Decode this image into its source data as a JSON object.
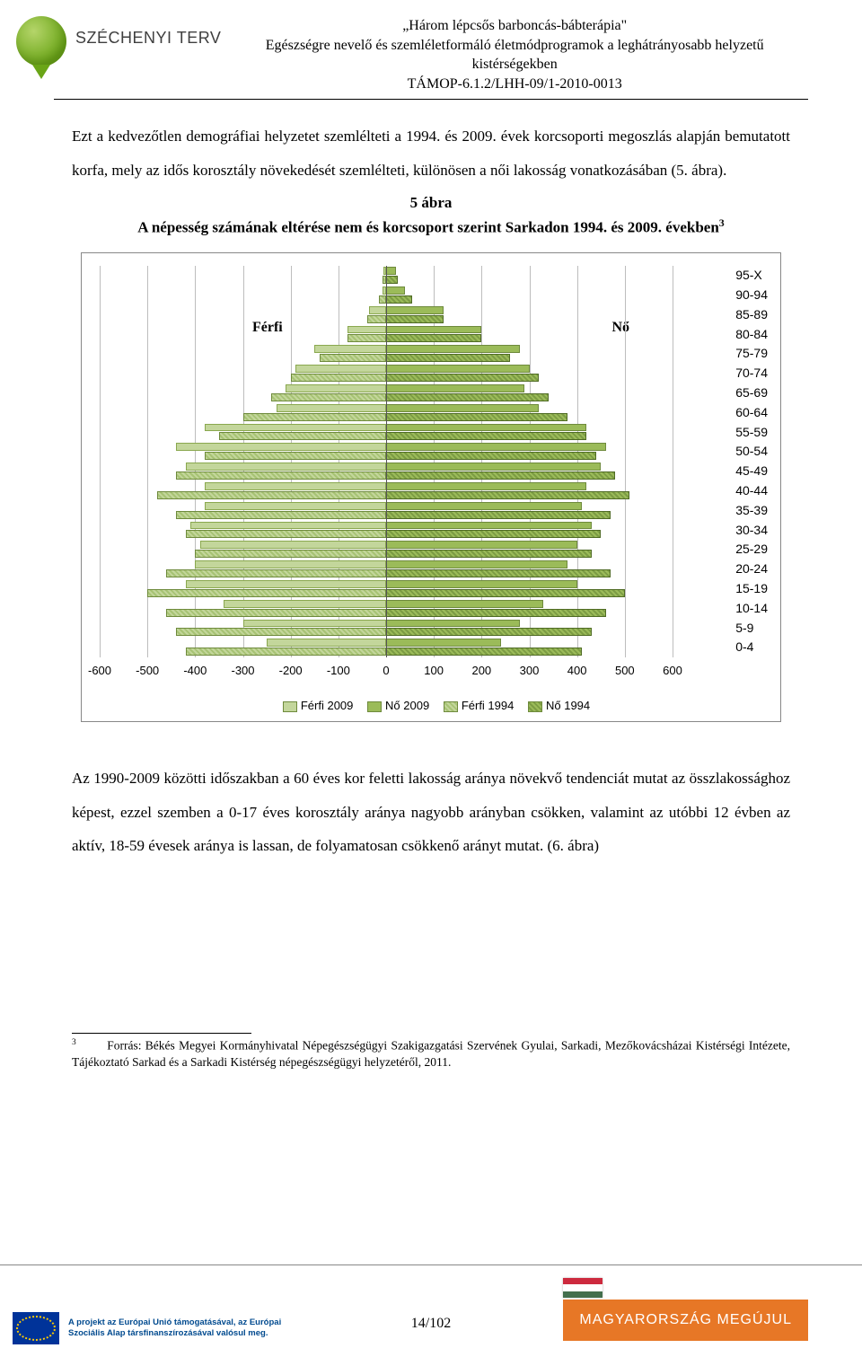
{
  "logo_text": "SZÉCHENYI TERV",
  "header": {
    "l1": "„Három lépcsős barboncás-bábterápia\"",
    "l2": "Egészségre nevelő és szemléletformáló életmódprogramok a leghátrányosabb helyzetű",
    "l3": "kistérségekben",
    "l4": "TÁMOP-6.1.2/LHH-09/1-2010-0013"
  },
  "para1": "Ezt a kedvezőtlen demográfiai helyzetet szemlélteti a 1994. és 2009. évek korcsoporti megoszlás alapján bemutatott korfa, mely az idős korosztály növekedését szemlélteti, különösen a női lakosság vonatkozásában (5. ábra).",
  "caption_l1": "5 ábra",
  "caption_l2_a": "A népesség számának eltérése nem és korcsoport szerint Sarkadon 1994. és 2009. években",
  "caption_sup": "3",
  "chart": {
    "male_label": "Férfi",
    "female_label": "Nő",
    "age_groups": [
      "95-X",
      "90-94",
      "85-89",
      "80-84",
      "75-79",
      "70-74",
      "65-69",
      "60-64",
      "55-59",
      "50-54",
      "45-49",
      "40-44",
      "35-39",
      "30-34",
      "25-29",
      "20-24",
      "15-19",
      "10-14",
      "5-9",
      "0-4"
    ],
    "x_ticks": [
      "-600",
      "-500",
      "-400",
      "-300",
      "-200",
      "-100",
      "0",
      "100",
      "200",
      "300",
      "400",
      "500",
      "600"
    ],
    "x_min": -600,
    "x_max": 600,
    "legend": [
      "Férfi 2009",
      "Nő 2009",
      "Férfi 1994",
      "Nő 1994"
    ],
    "legend_swatch": [
      "#c3d69b",
      "#9bbb59",
      "pm",
      "pf"
    ],
    "series": {
      "m2009": [
        -5,
        -8,
        -35,
        -80,
        -150,
        -190,
        -210,
        -230,
        -380,
        -440,
        -420,
        -380,
        -380,
        -410,
        -390,
        -400,
        -420,
        -340,
        -300,
        -250
      ],
      "f2009": [
        20,
        40,
        120,
        200,
        280,
        300,
        290,
        320,
        420,
        460,
        450,
        420,
        410,
        430,
        400,
        380,
        400,
        330,
        280,
        240
      ],
      "m1994": [
        -8,
        -15,
        -40,
        -80,
        -140,
        -200,
        -240,
        -300,
        -350,
        -380,
        -440,
        -480,
        -440,
        -420,
        -400,
        -460,
        -500,
        -460,
        -440,
        -420
      ],
      "f1994": [
        25,
        55,
        120,
        200,
        260,
        320,
        340,
        380,
        420,
        440,
        480,
        510,
        470,
        450,
        430,
        470,
        500,
        460,
        430,
        410
      ]
    }
  },
  "para2": "Az 1990-2009 közötti időszakban a 60 éves kor feletti lakosság aránya növekvő tendenciát mutat az összlakossághoz képest, ezzel szemben a 0-17 éves korosztály aránya nagyobb arányban csökken, valamint az utóbbi 12 évben az aktív, 18-59 évesek aránya is lassan, de folyamatosan csökkenő arányt mutat. (6. ábra)",
  "footnote_num": "3",
  "footnote": "Forrás: Békés Megyei Kormányhivatal Népegészségügyi Szakigazgatási Szervének Gyulai, Sarkadi, Mezőkovácsházai Kistérségi Intézete, Tájékoztató Sarkad és a Sarkadi Kistérség népegészségügyi helyzetéről, 2011.",
  "footer_left_l1": "A projekt az Európai Unió támogatásával, az Európai",
  "footer_left_l2": "Szociális Alap társfinanszírozásával valósul meg.",
  "page_number": "14/102",
  "footer_right": "MAGYARORSZÁG MEGÚJUL"
}
